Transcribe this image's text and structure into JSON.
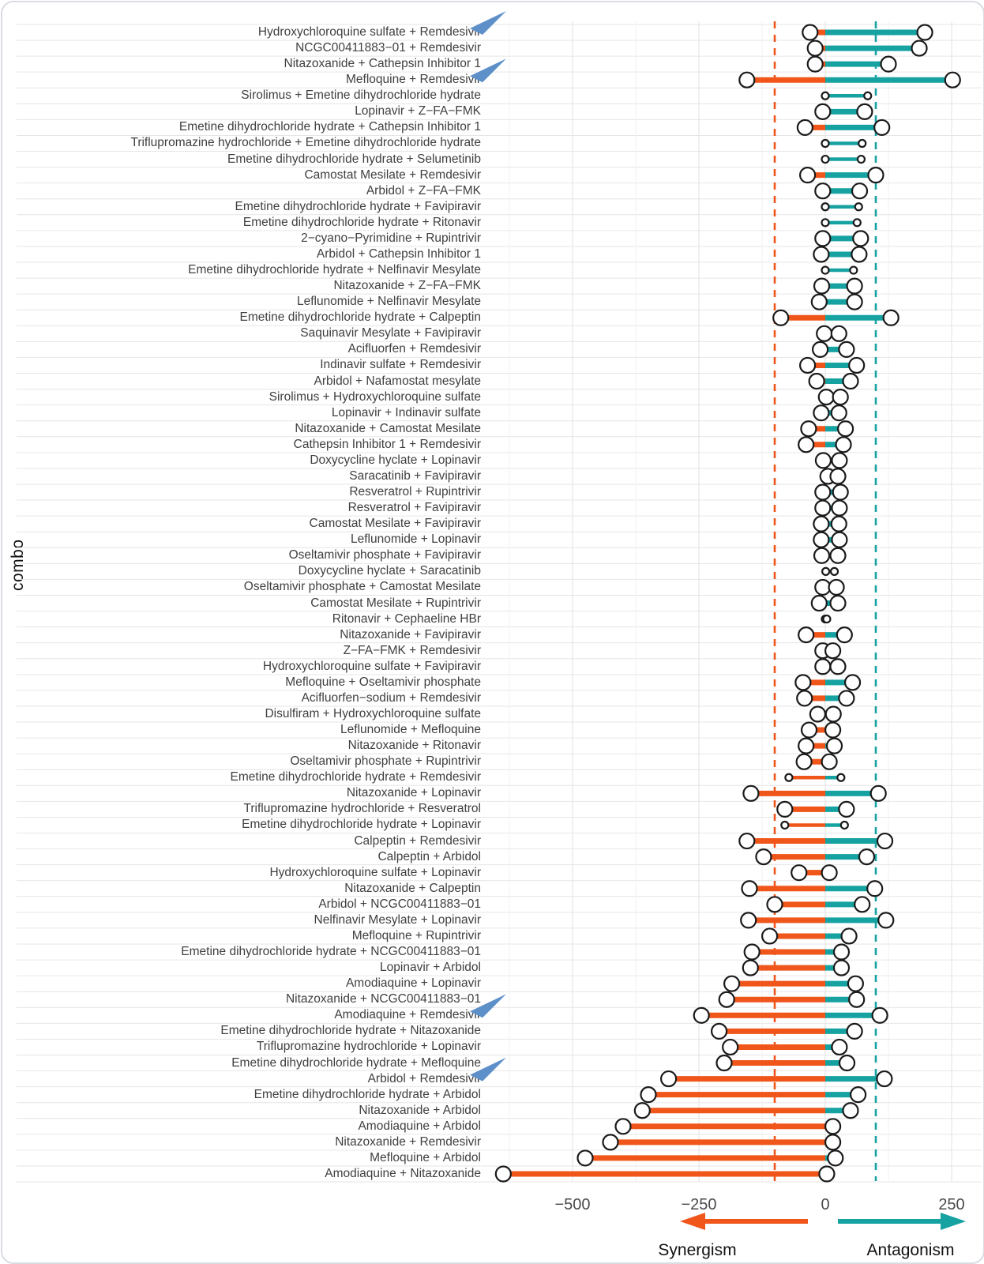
{
  "figure": {
    "y_axis_title": "combo",
    "legend": {
      "synergism_label": "Synergism",
      "antagonism_label": "Antagonism"
    }
  },
  "chart_data": {
    "type": "dumbbell",
    "title": "",
    "xlabel": "",
    "ylabel": "combo",
    "xlim": [
      -660,
      310
    ],
    "x_ticks": [
      {
        "v": -500,
        "label": "−500"
      },
      {
        "v": -250,
        "label": "−250"
      },
      {
        "v": 0,
        "label": "0"
      },
      {
        "v": 250,
        "label": "250"
      }
    ],
    "x_minor_gridlines": [
      -625,
      -375,
      -125,
      125
    ],
    "reference_lines": {
      "synergism_threshold": -100,
      "antagonism_threshold": 100
    },
    "legend": {
      "synergism": "Synergism",
      "antagonism": "Antagonism"
    },
    "colors": {
      "synergism": "#F0551A",
      "antagonism": "#17A2A2",
      "highlight_arrow": "#5D8FC9",
      "marker_fill": "#FFFFFF",
      "marker_stroke": "#1A1A1A",
      "gridline_major": "#E6E6E6",
      "gridline_minor": "#F1F1F1"
    },
    "rows": [
      {
        "combo": "Hydroxychloroquine sulfate + Remdesivir",
        "synergism": -30,
        "antagonism": 197,
        "small": false,
        "arrow": true
      },
      {
        "combo": "NCGC00411883−01 + Remdesivir",
        "synergism": -20,
        "antagonism": 186,
        "small": false,
        "arrow": false
      },
      {
        "combo": "Nitazoxanide + Cathepsin Inhibitor 1",
        "synergism": -20,
        "antagonism": 125,
        "small": false,
        "arrow": false
      },
      {
        "combo": "Mefloquine + Remdesivir",
        "synergism": -155,
        "antagonism": 252,
        "small": false,
        "arrow": true
      },
      {
        "combo": "Sirolimus + Emetine dihydrochloride hydrate",
        "synergism": 0,
        "antagonism": 84,
        "small": true,
        "arrow": false
      },
      {
        "combo": "Lopinavir + Z−FA−FMK",
        "synergism": -5,
        "antagonism": 78,
        "small": false,
        "arrow": false
      },
      {
        "combo": "Emetine dihydrochloride hydrate + Cathepsin Inhibitor 1",
        "synergism": -40,
        "antagonism": 112,
        "small": false,
        "arrow": false
      },
      {
        "combo": "Triflupromazine hydrochloride + Emetine dihydrochloride hydrate",
        "synergism": 0,
        "antagonism": 73,
        "small": true,
        "arrow": false
      },
      {
        "combo": "Emetine dihydrochloride hydrate + Selumetinib",
        "synergism": 0,
        "antagonism": 71,
        "small": true,
        "arrow": false
      },
      {
        "combo": "Camostat Mesilate + Remdesivir",
        "synergism": -35,
        "antagonism": 100,
        "small": false,
        "arrow": false
      },
      {
        "combo": "Arbidol + Z−FA−FMK",
        "synergism": -5,
        "antagonism": 68,
        "small": false,
        "arrow": false
      },
      {
        "combo": "Emetine dihydrochloride hydrate + Favipiravir",
        "synergism": 0,
        "antagonism": 66,
        "small": true,
        "arrow": false
      },
      {
        "combo": "Emetine dihydrochloride hydrate + Ritonavir",
        "synergism": 0,
        "antagonism": 63,
        "small": true,
        "arrow": false
      },
      {
        "combo": "2−cyano−Pyrimidine + Rupintrivir",
        "synergism": -5,
        "antagonism": 70,
        "small": false,
        "arrow": false
      },
      {
        "combo": "Arbidol + Cathepsin Inhibitor 1",
        "synergism": -8,
        "antagonism": 67,
        "small": false,
        "arrow": false
      },
      {
        "combo": "Emetine dihydrochloride hydrate + Nelfinavir Mesylate",
        "synergism": 0,
        "antagonism": 56,
        "small": true,
        "arrow": false
      },
      {
        "combo": "Nitazoxanide + Z−FA−FMK",
        "synergism": -7,
        "antagonism": 58,
        "small": false,
        "arrow": false
      },
      {
        "combo": "Leflunomide + Nelfinavir Mesylate",
        "synergism": -12,
        "antagonism": 58,
        "small": false,
        "arrow": false
      },
      {
        "combo": "Emetine dihydrochloride hydrate + Calpeptin",
        "synergism": -88,
        "antagonism": 130,
        "small": false,
        "arrow": false
      },
      {
        "combo": "Saquinavir Mesylate + Favipiravir",
        "synergism": -2,
        "antagonism": 27,
        "small": false,
        "arrow": false
      },
      {
        "combo": "Acifluorfen + Remdesivir",
        "synergism": -10,
        "antagonism": 42,
        "small": false,
        "arrow": false
      },
      {
        "combo": "Indinavir sulfate + Remdesivir",
        "synergism": -35,
        "antagonism": 62,
        "small": false,
        "arrow": false
      },
      {
        "combo": "Arbidol + Nafamostat mesylate",
        "synergism": -17,
        "antagonism": 50,
        "small": false,
        "arrow": false
      },
      {
        "combo": "Sirolimus + Hydroxychloroquine sulfate",
        "synergism": 2,
        "antagonism": 30,
        "small": false,
        "arrow": false
      },
      {
        "combo": "Lopinavir + Indinavir sulfate",
        "synergism": -8,
        "antagonism": 27,
        "small": false,
        "arrow": false
      },
      {
        "combo": "Nitazoxanide + Camostat Mesilate",
        "synergism": -33,
        "antagonism": 40,
        "small": false,
        "arrow": false
      },
      {
        "combo": "Cathepsin Inhibitor 1 + Remdesivir",
        "synergism": -38,
        "antagonism": 36,
        "small": false,
        "arrow": false
      },
      {
        "combo": "Doxycycline hyclate + Lopinavir",
        "synergism": -4,
        "antagonism": 28,
        "small": false,
        "arrow": false
      },
      {
        "combo": "Saracatinib + Favipiravir",
        "synergism": 5,
        "antagonism": 25,
        "small": false,
        "arrow": false
      },
      {
        "combo": "Resveratrol + Rupintrivir",
        "synergism": -5,
        "antagonism": 30,
        "small": false,
        "arrow": false
      },
      {
        "combo": "Resveratrol + Favipiravir",
        "synergism": -5,
        "antagonism": 28,
        "small": false,
        "arrow": false
      },
      {
        "combo": "Camostat Mesilate + Favipiravir",
        "synergism": -8,
        "antagonism": 27,
        "small": false,
        "arrow": false
      },
      {
        "combo": "Leflunomide + Lopinavir",
        "synergism": -8,
        "antagonism": 28,
        "small": false,
        "arrow": false
      },
      {
        "combo": "Oseltamivir phosphate + Favipiravir",
        "synergism": -7,
        "antagonism": 25,
        "small": false,
        "arrow": false
      },
      {
        "combo": "Doxycycline hyclate + Saracatinib",
        "synergism": 1,
        "antagonism": 18,
        "small": true,
        "arrow": false
      },
      {
        "combo": "Oseltamivir phosphate + Camostat Mesilate",
        "synergism": -5,
        "antagonism": 22,
        "small": false,
        "arrow": false
      },
      {
        "combo": "Camostat Mesilate + Rupintrivir",
        "synergism": -12,
        "antagonism": 25,
        "small": false,
        "arrow": false
      },
      {
        "combo": "Ritonavir + Cephaeline HBr",
        "synergism": 0,
        "antagonism": 3,
        "small": true,
        "arrow": false
      },
      {
        "combo": "Nitazoxanide + Favipiravir",
        "synergism": -38,
        "antagonism": 38,
        "small": false,
        "arrow": false
      },
      {
        "combo": "Z−FA−FMK + Remdesivir",
        "synergism": -5,
        "antagonism": 15,
        "small": false,
        "arrow": false
      },
      {
        "combo": "Hydroxychloroquine sulfate + Favipiravir",
        "synergism": -5,
        "antagonism": 25,
        "small": false,
        "arrow": false
      },
      {
        "combo": "Mefloquine + Oseltamivir phosphate",
        "synergism": -44,
        "antagonism": 54,
        "small": false,
        "arrow": false
      },
      {
        "combo": "Acifluorfen−sodium + Remdesivir",
        "synergism": -41,
        "antagonism": 42,
        "small": false,
        "arrow": false
      },
      {
        "combo": "Disulfiram + Hydroxychloroquine sulfate",
        "synergism": -15,
        "antagonism": 16,
        "small": false,
        "arrow": false
      },
      {
        "combo": "Leflunomide + Mefloquine",
        "synergism": -32,
        "antagonism": 15,
        "small": false,
        "arrow": false
      },
      {
        "combo": "Nitazoxanide + Ritonavir",
        "synergism": -38,
        "antagonism": 18,
        "small": false,
        "arrow": false
      },
      {
        "combo": "Oseltamivir phosphate + Rupintrivir",
        "synergism": -42,
        "antagonism": 8,
        "small": false,
        "arrow": false
      },
      {
        "combo": "Emetine dihydrochloride hydrate + Remdesivir",
        "synergism": -72,
        "antagonism": 31,
        "small": true,
        "arrow": false
      },
      {
        "combo": "Nitazoxanide + Lopinavir",
        "synergism": -147,
        "antagonism": 105,
        "small": false,
        "arrow": false
      },
      {
        "combo": "Triflupromazine hydrochloride + Resveratrol",
        "synergism": -80,
        "antagonism": 42,
        "small": false,
        "arrow": false
      },
      {
        "combo": "Emetine dihydrochloride hydrate + Lopinavir",
        "synergism": -80,
        "antagonism": 38,
        "small": true,
        "arrow": false
      },
      {
        "combo": "Calpeptin + Remdesivir",
        "synergism": -155,
        "antagonism": 118,
        "small": false,
        "arrow": false
      },
      {
        "combo": "Calpeptin + Arbidol",
        "synergism": -122,
        "antagonism": 82,
        "small": false,
        "arrow": false
      },
      {
        "combo": "Hydroxychloroquine sulfate + Lopinavir",
        "synergism": -52,
        "antagonism": 8,
        "small": false,
        "arrow": false
      },
      {
        "combo": "Nitazoxanide + Calpeptin",
        "synergism": -150,
        "antagonism": 98,
        "small": false,
        "arrow": false
      },
      {
        "combo": "Arbidol + NCGC00411883−01",
        "synergism": -100,
        "antagonism": 73,
        "small": false,
        "arrow": false
      },
      {
        "combo": "Nelfinavir Mesylate + Lopinavir",
        "synergism": -152,
        "antagonism": 120,
        "small": false,
        "arrow": false
      },
      {
        "combo": "Mefloquine + Rupintrivir",
        "synergism": -110,
        "antagonism": 47,
        "small": false,
        "arrow": false
      },
      {
        "combo": "Emetine dihydrochloride hydrate + NCGC00411883−01",
        "synergism": -145,
        "antagonism": 32,
        "small": false,
        "arrow": false
      },
      {
        "combo": "Lopinavir + Arbidol",
        "synergism": -148,
        "antagonism": 32,
        "small": false,
        "arrow": false
      },
      {
        "combo": "Amodiaquine + Lopinavir",
        "synergism": -185,
        "antagonism": 60,
        "small": false,
        "arrow": false
      },
      {
        "combo": "Nitazoxanide + NCGC00411883−01",
        "synergism": -195,
        "antagonism": 62,
        "small": false,
        "arrow": false
      },
      {
        "combo": "Amodiaquine + Remdesivir",
        "synergism": -245,
        "antagonism": 108,
        "small": false,
        "arrow": true
      },
      {
        "combo": "Emetine dihydrochloride hydrate + Nitazoxanide",
        "synergism": -210,
        "antagonism": 58,
        "small": false,
        "arrow": false
      },
      {
        "combo": "Triflupromazine hydrochloride + Lopinavir",
        "synergism": -188,
        "antagonism": 28,
        "small": false,
        "arrow": false
      },
      {
        "combo": "Emetine dihydrochloride hydrate + Mefloquine",
        "synergism": -200,
        "antagonism": 43,
        "small": false,
        "arrow": false
      },
      {
        "combo": "Arbidol + Remdesivir",
        "synergism": -310,
        "antagonism": 117,
        "small": false,
        "arrow": true
      },
      {
        "combo": "Emetine dihydrochloride hydrate + Arbidol",
        "synergism": -350,
        "antagonism": 65,
        "small": false,
        "arrow": false
      },
      {
        "combo": "Nitazoxanide + Arbidol",
        "synergism": -362,
        "antagonism": 50,
        "small": false,
        "arrow": false
      },
      {
        "combo": "Amodiaquine + Arbidol",
        "synergism": -400,
        "antagonism": 15,
        "small": false,
        "arrow": false
      },
      {
        "combo": "Nitazoxanide + Remdesivir",
        "synergism": -425,
        "antagonism": 15,
        "small": false,
        "arrow": false
      },
      {
        "combo": "Mefloquine + Arbidol",
        "synergism": -475,
        "antagonism": 20,
        "small": false,
        "arrow": false
      },
      {
        "combo": "Amodiaquine + Nitazoxanide",
        "synergism": -637,
        "antagonism": 3,
        "small": false,
        "arrow": false
      }
    ]
  }
}
